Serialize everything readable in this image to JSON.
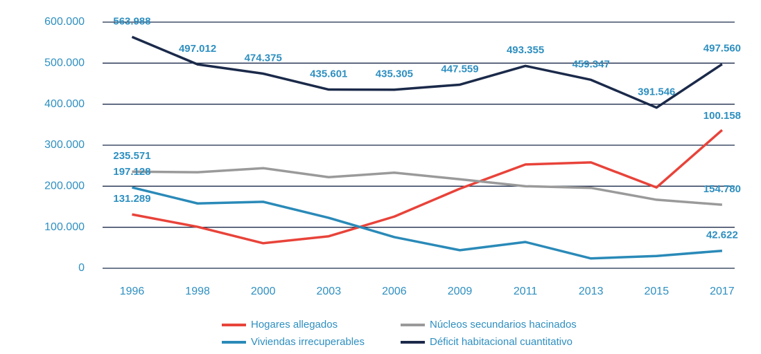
{
  "chart_data": {
    "type": "line",
    "categories": [
      "1996",
      "1998",
      "2000",
      "2003",
      "2006",
      "2009",
      "2011",
      "2013",
      "2015",
      "2017"
    ],
    "ylim": [
      0,
      600000
    ],
    "yticks": [
      0,
      {
        "value": 100000,
        "label": "100.000"
      },
      {
        "value": 200000,
        "label": "200.000"
      },
      {
        "value": 300000,
        "label": "300.000"
      },
      {
        "value": 400000,
        "label": "400.000"
      },
      {
        "value": 500000,
        "label": "500.000"
      },
      {
        "value": 600000,
        "label": "600.000"
      }
    ],
    "grid": true,
    "series": [
      {
        "name": "Hogares allegados",
        "color": "#e8433a",
        "values": [
          131289,
          101000,
          61000,
          78000,
          126000,
          194000,
          253000,
          258000,
          197000,
          337000
        ],
        "value_labels": [
          "131.289",
          null,
          null,
          null,
          null,
          null,
          null,
          null,
          null,
          null
        ]
      },
      {
        "name": "Núcleos secundarios hacinados",
        "color": "#9a9a9a",
        "values": [
          235571,
          234000,
          244000,
          222000,
          233000,
          217000,
          200000,
          196000,
          167000,
          154780
        ],
        "value_labels": [
          "235.571",
          null,
          null,
          null,
          null,
          null,
          null,
          null,
          null,
          "154.780"
        ]
      },
      {
        "name": "Viviendas irrecuperables",
        "color": "#2a8ab8",
        "values": [
          197128,
          158000,
          162000,
          123000,
          76000,
          44000,
          64000,
          24000,
          30000,
          42622
        ],
        "value_labels": [
          "197.128",
          null,
          null,
          null,
          null,
          null,
          null,
          null,
          null,
          "42.622"
        ]
      },
      {
        "name": "Déficit habitacional cuantitativo",
        "color": "#1b2a4a",
        "values": [
          563988,
          497012,
          474375,
          435601,
          435305,
          447559,
          493355,
          459347,
          391546,
          497560
        ],
        "value_labels": [
          "563.988",
          "497.012",
          "474.375",
          "435.601",
          "435.305",
          "447.559",
          "493.355",
          "459.347",
          "391.546",
          "497.560"
        ]
      }
    ],
    "annotations": [
      "100.158"
    ],
    "legend": "bottom"
  }
}
